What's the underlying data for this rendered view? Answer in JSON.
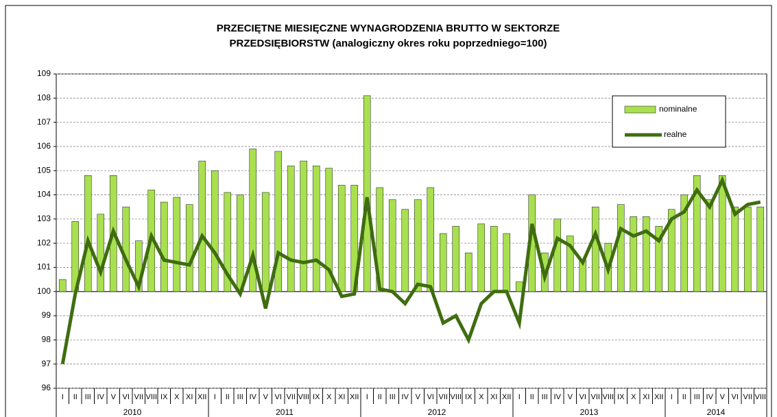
{
  "chart_data": {
    "type": "bar-line",
    "title": [
      "PRZECIĘTNE MIESIĘCZNE WYNAGRODZENIA BRUTTO W SEKTORZE",
      "PRZEDSIĘBIORSTW (analogiczny okres roku poprzedniego=100)"
    ],
    "categories": [
      "I",
      "II",
      "III",
      "IV",
      "V",
      "VI",
      "VII",
      "VIII",
      "IX",
      "X",
      "XI",
      "XII",
      "I",
      "II",
      "III",
      "IV",
      "V",
      "VI",
      "VII",
      "VIII",
      "IX",
      "X",
      "XI",
      "XII",
      "I",
      "II",
      "III",
      "IV",
      "V",
      "VI",
      "VII",
      "VIII",
      "IX",
      "X",
      "XI",
      "XII",
      "I",
      "II",
      "III",
      "IV",
      "V",
      "VI",
      "VII",
      "VIII",
      "IX",
      "X",
      "XI",
      "XII",
      "I",
      "II",
      "III",
      "IV",
      "V",
      "VI",
      "VII",
      "VIII"
    ],
    "groups": [
      "2010",
      "2011",
      "2012",
      "2013",
      "2014"
    ],
    "bar_base": 100,
    "series": [
      {
        "name": "nominalne",
        "type": "bar",
        "color": "#a9e04f",
        "values": [
          100.5,
          102.9,
          104.8,
          103.2,
          104.8,
          103.5,
          102.1,
          104.2,
          103.7,
          103.9,
          103.6,
          105.4,
          105.0,
          104.1,
          104.0,
          105.9,
          104.1,
          105.8,
          105.2,
          105.4,
          105.2,
          105.1,
          104.4,
          104.4,
          108.1,
          104.3,
          103.8,
          103.4,
          103.8,
          104.3,
          102.4,
          102.7,
          101.6,
          102.8,
          102.7,
          102.4,
          100.4,
          104.0,
          101.6,
          103.0,
          102.3,
          101.3,
          103.5,
          102.0,
          103.6,
          103.1,
          103.1,
          102.7,
          103.4,
          104.0,
          104.8,
          103.8,
          104.8,
          103.5,
          103.5,
          103.5
        ]
      },
      {
        "name": "realne",
        "type": "line",
        "color": "#3f6d10",
        "values": [
          97.0,
          99.9,
          102.1,
          100.8,
          102.5,
          101.3,
          100.2,
          102.3,
          101.3,
          101.2,
          101.1,
          102.3,
          101.6,
          100.7,
          99.9,
          101.5,
          99.3,
          101.6,
          101.3,
          101.2,
          101.3,
          100.9,
          99.8,
          99.9,
          103.9,
          100.1,
          100.0,
          99.5,
          100.3,
          100.2,
          98.7,
          99.0,
          98.0,
          99.5,
          100.0,
          100.0,
          98.7,
          102.8,
          100.6,
          102.2,
          101.9,
          101.2,
          102.4,
          100.9,
          102.6,
          102.3,
          102.5,
          102.1,
          103.0,
          103.3,
          104.2,
          103.5,
          104.6,
          103.2,
          103.6,
          103.7
        ]
      }
    ],
    "ylim": [
      96,
      109
    ],
    "yticks": [
      96,
      97,
      98,
      99,
      100,
      101,
      102,
      103,
      104,
      105,
      106,
      107,
      108,
      109
    ],
    "grid": true,
    "legend": "top-right"
  }
}
